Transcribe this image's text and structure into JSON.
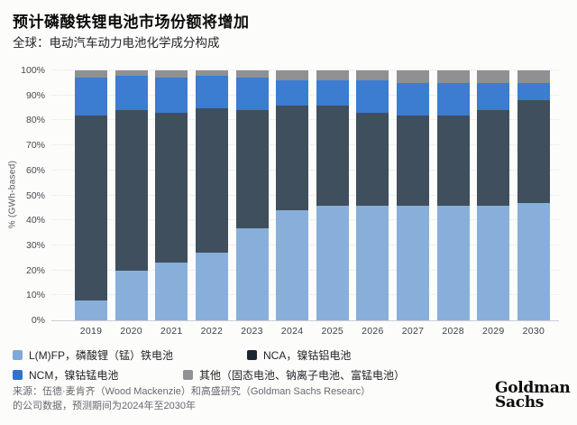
{
  "header": {
    "title": "预计磷酸铁锂电池市场份额将增加",
    "subtitle": "全球：电动汽车动力电池化学成分构成"
  },
  "chart_data": {
    "type": "bar",
    "stacked": true,
    "title": "预计磷酸铁锂电池市场份额将增加",
    "subtitle": "全球：电动汽车动力电池化学成分构成",
    "xlabel": "",
    "ylabel": "% (GWh-based)",
    "ylim": [
      0,
      100
    ],
    "y_ticks": [
      "0%",
      "10%",
      "20%",
      "30%",
      "40%",
      "50%",
      "60%",
      "70%",
      "80%",
      "90%",
      "100%"
    ],
    "grid": "horizontal-dotted",
    "legend_position": "bottom",
    "categories": [
      "2019",
      "2020",
      "2021",
      "2022",
      "2023",
      "2024",
      "2025",
      "2026",
      "2027",
      "2028",
      "2029",
      "2030"
    ],
    "series": [
      {
        "key": "lfp",
        "name": "L(M)FP，磷酸锂（锰）铁电池",
        "color": "#88afd9",
        "values": [
          8,
          20,
          23,
          27,
          37,
          44,
          46,
          46,
          46,
          46,
          46,
          47
        ]
      },
      {
        "key": "nca",
        "name": "NCA，镍钴铝电池",
        "color": "#404f5d",
        "values": [
          74,
          64,
          60,
          58,
          47,
          42,
          40,
          37,
          36,
          36,
          38,
          41
        ]
      },
      {
        "key": "ncm",
        "name": "NCM，镍钴锰电池",
        "color": "#3c7cd1",
        "values": [
          15,
          14,
          14,
          13,
          13,
          10,
          10,
          13,
          13,
          13,
          11,
          7
        ]
      },
      {
        "key": "other",
        "name": "其他（固态电池、钠离子电池、富锰电池）",
        "color": "#8e9092",
        "values": [
          3,
          2,
          3,
          2,
          3,
          4,
          4,
          4,
          5,
          5,
          5,
          5
        ]
      }
    ]
  },
  "legend": {
    "rows": [
      [
        {
          "key": "lfp",
          "label": "L(M)FP，磷酸锂（锰）铁电池",
          "swatch": "#7fa9d6"
        },
        {
          "key": "nca",
          "label": "NCA，镍钴铝电池",
          "swatch": "#1b2733"
        }
      ],
      [
        {
          "key": "ncm",
          "label": "NCM，镍钴锰电池",
          "swatch": "#2f72cd"
        },
        {
          "key": "other",
          "label": "其他（固态电池、钠离子电池、富锰电池）",
          "swatch": "#8f9193"
        }
      ]
    ]
  },
  "footer": {
    "source_line1": "来源：伍德·麦肯齐（Wood Mackenzie）和高盛研究（Goldman Sachs Researc）",
    "source_line2": "的公司数据，预测期间为2024年至2030年",
    "logo_line1": "Goldman",
    "logo_line2": "Sachs"
  },
  "colors": {
    "background": "#fcfcfb",
    "axis": "#cbced1",
    "gridline": "#e3e5e8",
    "lfp": "#88afd9",
    "nca": "#404f5d",
    "ncm": "#3c7cd1",
    "other": "#8e9092"
  }
}
